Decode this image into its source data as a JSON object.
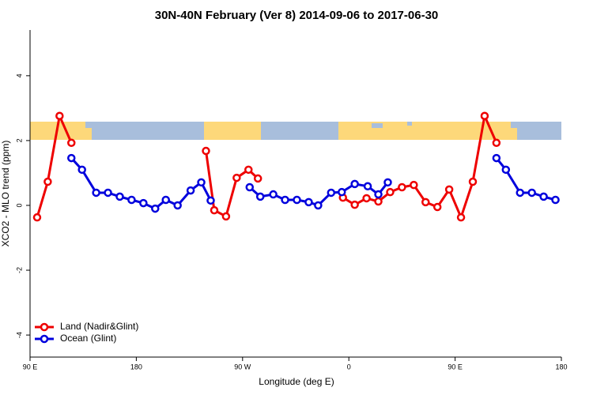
{
  "chart_data": {
    "type": "line",
    "title": "30N-40N February (Ver 8)   2014-09-06 to 2017-06-30",
    "xlabel": "Longitude (deg E)",
    "ylabel": "XCO2 - MLO trend (ppm)",
    "xlim": [
      90,
      540
    ],
    "xticks": [
      {
        "value": 90,
        "label": "90 E"
      },
      {
        "value": 180,
        "label": "180"
      },
      {
        "value": 270,
        "label": "90 W"
      },
      {
        "value": 360,
        "label": "0"
      },
      {
        "value": 450,
        "label": "90 E"
      },
      {
        "value": 540,
        "label": "180"
      }
    ],
    "ylim": [
      -4.68,
      5.41
    ],
    "yticks": [
      -4,
      -2,
      0,
      2,
      4
    ],
    "legend": "bottomleft",
    "series": [
      {
        "name": "Land (Nadir&Glint)",
        "color": "#ee0000",
        "x": [
          96,
          105,
          115,
          125,
          null,
          239,
          246,
          256,
          265,
          275,
          283,
          null,
          355,
          365,
          375,
          385,
          395,
          405,
          415,
          425,
          435,
          445,
          455,
          465,
          475,
          485
        ],
        "values": [
          -0.37,
          0.73,
          2.76,
          1.93,
          null,
          1.68,
          -0.15,
          -0.34,
          0.85,
          1.1,
          0.83,
          null,
          0.24,
          0.02,
          0.22,
          0.12,
          0.41,
          0.56,
          0.63,
          0.1,
          -0.05,
          0.49,
          -0.37,
          0.73,
          2.76,
          1.93
        ]
      },
      {
        "name": "Ocean (Glint)",
        "color": "#0000dd",
        "x": [
          125,
          134,
          146,
          156,
          166,
          176,
          186,
          196,
          205,
          215,
          226,
          235,
          243,
          null,
          276,
          285,
          296,
          306,
          316,
          326,
          334,
          345,
          354,
          365,
          376,
          385,
          393,
          null,
          485,
          493,
          505,
          515,
          525,
          535
        ],
        "values": [
          1.46,
          1.1,
          0.39,
          0.39,
          0.27,
          0.17,
          0.07,
          -0.1,
          0.17,
          0.0,
          0.46,
          0.71,
          0.15,
          null,
          0.56,
          0.27,
          0.34,
          0.17,
          0.17,
          0.1,
          0.0,
          0.39,
          0.41,
          0.66,
          0.59,
          0.34,
          0.71,
          null,
          1.46,
          1.1,
          0.39,
          0.39,
          0.27,
          0.17
        ]
      }
    ]
  }
}
